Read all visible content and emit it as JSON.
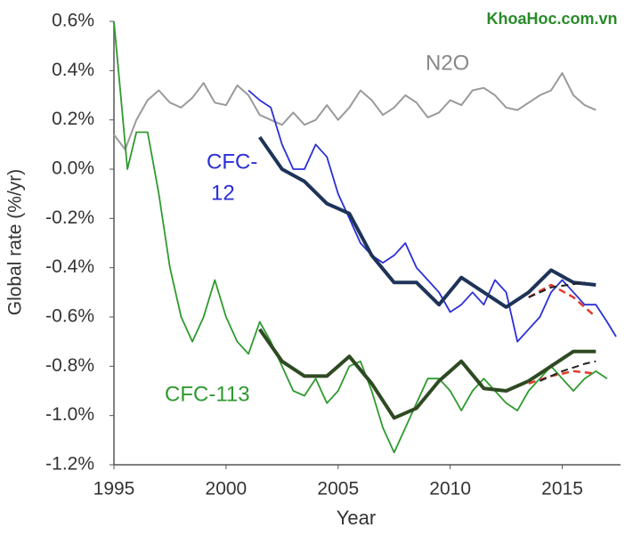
{
  "chart_data": {
    "type": "line",
    "watermark": "KhoaHoc.com.vn",
    "xlabel": "Year",
    "ylabel": "Global rate (%/yr)",
    "xlim": [
      1995,
      2017.6
    ],
    "ylim": [
      -1.2,
      0.6
    ],
    "xticks": [
      1995,
      2000,
      2005,
      2010,
      2015
    ],
    "yticks": [
      {
        "value": 0.6,
        "label": "0.6%"
      },
      {
        "value": 0.4,
        "label": "0.4%"
      },
      {
        "value": 0.2,
        "label": "0.2%"
      },
      {
        "value": 0.0,
        "label": "0.0%"
      },
      {
        "value": -0.2,
        "label": "-0.2%"
      },
      {
        "value": -0.4,
        "label": "-0.4%"
      },
      {
        "value": -0.6,
        "label": "-0.6%"
      },
      {
        "value": -0.8,
        "label": "-0.8%"
      },
      {
        "value": -1.0,
        "label": "-1.0%"
      },
      {
        "value": -1.2,
        "label": "-1.2%"
      }
    ],
    "annotations": [
      "N2O",
      "CFC-",
      "12",
      "CFC-113"
    ],
    "series": [
      {
        "color": "#9a9a9a",
        "width": 2,
        "x": [
          1995,
          1995.5,
          1996,
          1996.5,
          1997,
          1997.5,
          1998,
          1998.5,
          1999,
          1999.5,
          2000,
          2000.5,
          2001,
          2001.5,
          2002,
          2002.5,
          2003,
          2003.5,
          2004,
          2004.5,
          2005,
          2005.5,
          2006,
          2006.5,
          2007,
          2007.5,
          2008,
          2008.5,
          2009,
          2009.5,
          2010,
          2010.5,
          2011,
          2011.5,
          2012,
          2012.5,
          2013,
          2013.5,
          2014,
          2014.5,
          2015,
          2015.5,
          2016,
          2016.5
        ],
        "values": [
          0.14,
          0.08,
          0.2,
          0.28,
          0.32,
          0.27,
          0.25,
          0.29,
          0.35,
          0.27,
          0.26,
          0.34,
          0.3,
          0.22,
          0.2,
          0.18,
          0.23,
          0.18,
          0.2,
          0.26,
          0.2,
          0.25,
          0.32,
          0.28,
          0.22,
          0.25,
          0.3,
          0.27,
          0.21,
          0.23,
          0.28,
          0.26,
          0.32,
          0.33,
          0.3,
          0.25,
          0.24,
          0.27,
          0.3,
          0.32,
          0.39,
          0.3,
          0.26,
          0.24
        ]
      },
      {
        "color": "#2b2fd6",
        "width": 1.8,
        "x": [
          2001,
          2001.5,
          2002,
          2002.5,
          2003,
          2003.5,
          2004,
          2004.5,
          2005,
          2005.5,
          2006,
          2006.5,
          2007,
          2007.5,
          2008,
          2008.5,
          2009,
          2009.5,
          2010,
          2010.5,
          2011,
          2011.5,
          2012,
          2012.5,
          2013,
          2013.5,
          2014,
          2014.5,
          2015,
          2015.5,
          2016,
          2016.5,
          2017,
          2017.4
        ],
        "values": [
          0.32,
          0.28,
          0.25,
          0.1,
          0.0,
          0.0,
          0.1,
          0.05,
          -0.1,
          -0.2,
          -0.3,
          -0.35,
          -0.38,
          -0.35,
          -0.3,
          -0.4,
          -0.45,
          -0.5,
          -0.58,
          -0.55,
          -0.5,
          -0.55,
          -0.45,
          -0.5,
          -0.7,
          -0.65,
          -0.6,
          -0.5,
          -0.45,
          -0.5,
          -0.55,
          -0.55,
          -0.62,
          -0.68
        ]
      },
      {
        "color": "#1e3358",
        "width": 4,
        "x": [
          2001.5,
          2002.5,
          2003.5,
          2004.5,
          2005.5,
          2006.5,
          2007.5,
          2008.5,
          2009.5,
          2010.5,
          2011.5,
          2012.5,
          2013.5,
          2014.5,
          2015.5,
          2016.5
        ],
        "values": [
          0.13,
          0.0,
          -0.05,
          -0.14,
          -0.18,
          -0.35,
          -0.46,
          -0.46,
          -0.55,
          -0.44,
          -0.5,
          -0.56,
          -0.5,
          -0.41,
          -0.46,
          -0.47
        ]
      },
      {
        "color": "#e03a2a",
        "width": 2.5,
        "dashed": true,
        "x": [
          2013.5,
          2014.5,
          2015.5,
          2016.5
        ],
        "values": [
          -0.52,
          -0.47,
          -0.52,
          -0.6
        ]
      },
      {
        "color": "#222222",
        "width": 2,
        "dashed": true,
        "x": [
          2013.5,
          2014.5,
          2016
        ],
        "values": [
          -0.52,
          -0.48,
          -0.46
        ]
      },
      {
        "color": "#2f9a2f",
        "width": 1.8,
        "x": [
          1995,
          1995.3,
          1995.6,
          1996,
          1996.5,
          1997,
          1997.5,
          1998,
          1998.5,
          1999,
          1999.5,
          2000,
          2000.5,
          2001,
          2001.5,
          2002,
          2002.5,
          2003,
          2003.5,
          2004,
          2004.5,
          2005,
          2005.5,
          2006,
          2006.5,
          2007,
          2007.5,
          2008,
          2008.5,
          2009,
          2009.5,
          2010,
          2010.5,
          2011,
          2011.5,
          2012,
          2012.5,
          2013,
          2013.5,
          2014,
          2014.5,
          2015,
          2015.5,
          2016,
          2016.5,
          2017
        ],
        "values": [
          0.6,
          0.3,
          0.0,
          0.15,
          0.15,
          -0.1,
          -0.4,
          -0.6,
          -0.7,
          -0.6,
          -0.45,
          -0.6,
          -0.7,
          -0.75,
          -0.62,
          -0.7,
          -0.8,
          -0.9,
          -0.92,
          -0.85,
          -0.95,
          -0.9,
          -0.8,
          -0.78,
          -0.9,
          -1.05,
          -1.15,
          -1.05,
          -0.95,
          -0.85,
          -0.85,
          -0.9,
          -0.98,
          -0.9,
          -0.85,
          -0.9,
          -0.95,
          -0.98,
          -0.9,
          -0.85,
          -0.8,
          -0.85,
          -0.9,
          -0.85,
          -0.82,
          -0.85
        ]
      },
      {
        "color": "#2e4a22",
        "width": 4,
        "x": [
          2001.5,
          2002.5,
          2003.5,
          2004.5,
          2005.5,
          2006.5,
          2007.5,
          2008.5,
          2009.5,
          2010.5,
          2011.5,
          2012.5,
          2013.5,
          2014.5,
          2015.5,
          2016.5
        ],
        "values": [
          -0.65,
          -0.78,
          -0.84,
          -0.84,
          -0.76,
          -0.87,
          -1.01,
          -0.97,
          -0.86,
          -0.78,
          -0.89,
          -0.9,
          -0.86,
          -0.8,
          -0.74,
          -0.74
        ]
      },
      {
        "color": "#e03a2a",
        "width": 2.5,
        "dashed": true,
        "x": [
          2013.5,
          2014.5,
          2015.5,
          2016.5
        ],
        "values": [
          -0.87,
          -0.84,
          -0.82,
          -0.83
        ]
      },
      {
        "color": "#222222",
        "width": 2,
        "dashed": true,
        "x": [
          2014,
          2015,
          2016,
          2016.5
        ],
        "values": [
          -0.86,
          -0.82,
          -0.79,
          -0.78
        ]
      }
    ]
  }
}
